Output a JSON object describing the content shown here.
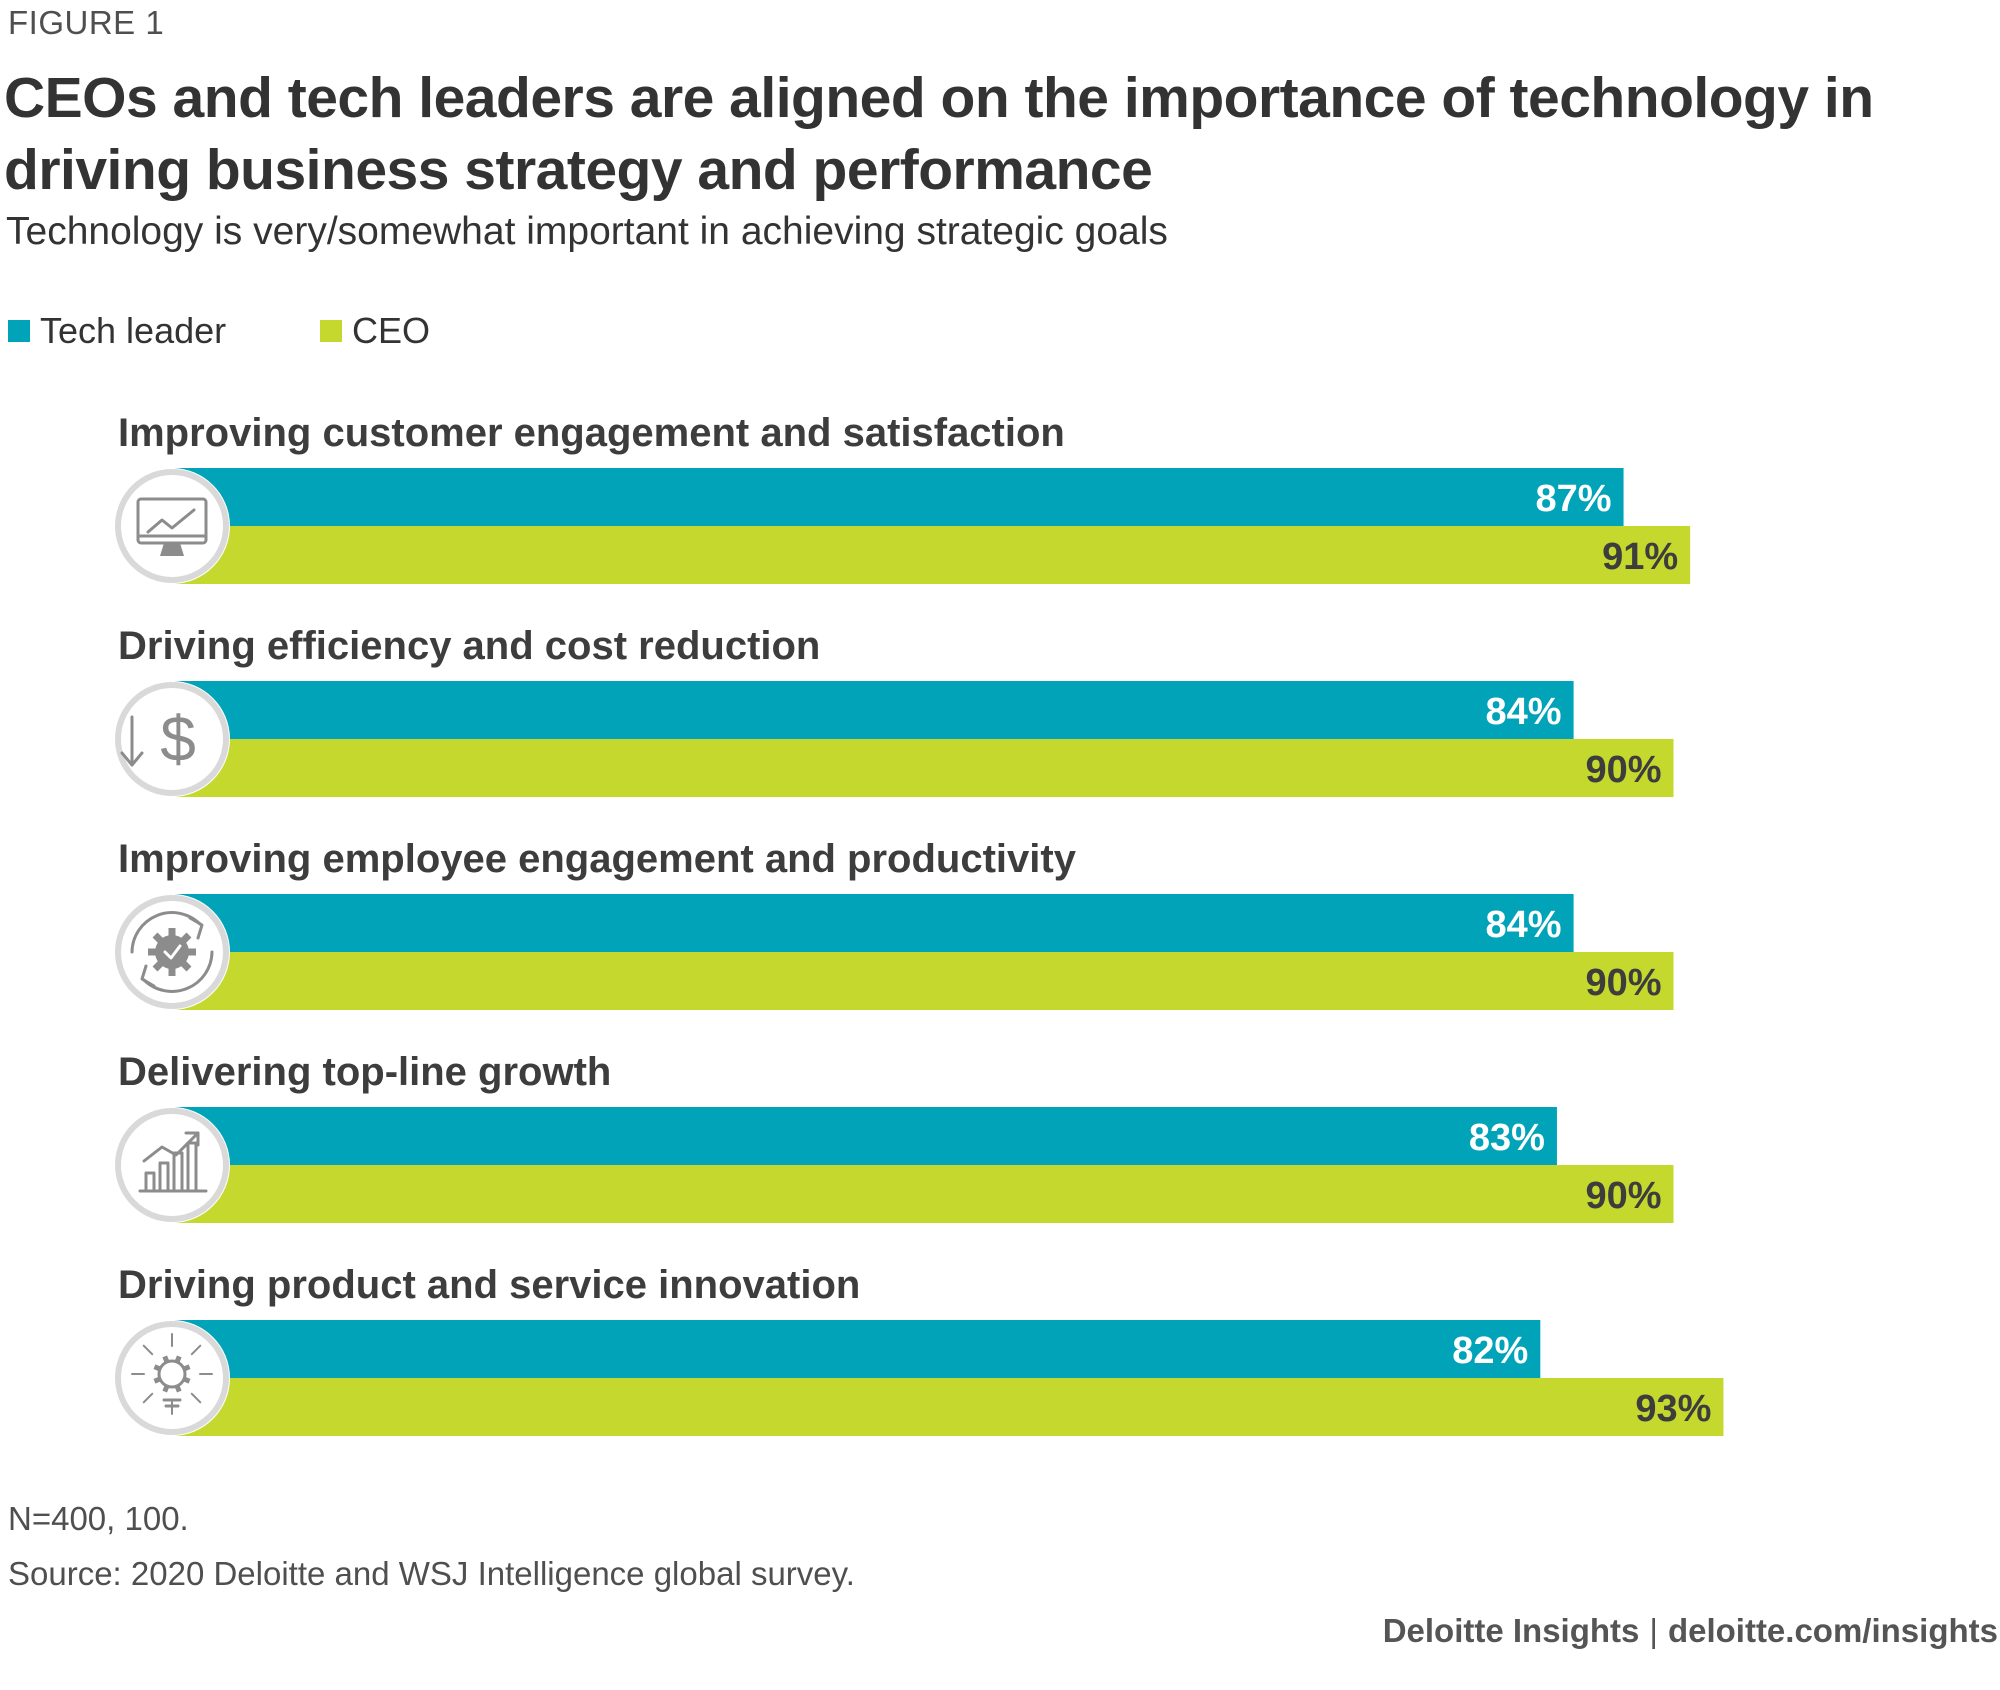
{
  "figure_label": "FIGURE 1",
  "footer": {
    "brand": "Deloitte Insights",
    "separator": "|",
    "url": "deloitte.com/insights"
  },
  "notes": {
    "n": "N=400, 100.",
    "source": "Source: 2020 Deloitte and WSJ Intelligence global survey."
  },
  "colors": {
    "tech_leader": "#00A3B8",
    "ceo": "#C4D82D",
    "icon_stroke": "#8c8c8c",
    "icon_ring": "#d9d9d9"
  },
  "chart_data": {
    "type": "bar",
    "orientation": "horizontal",
    "title": "CEOs and tech leaders are aligned on the importance of technology in driving business strategy and performance",
    "subtitle": "Technology is very/somewhat important in achieving strategic goals",
    "categories": [
      "Improving customer engagement and satisfaction",
      "Driving efficiency and cost reduction",
      "Improving employee engagement and productivity",
      "Delivering top-line growth",
      "Driving product and service innovation"
    ],
    "icons": [
      "monitor-chart-icon",
      "dollar-down-icon",
      "gear-cycle-icon",
      "growth-chart-icon",
      "lightbulb-gear-icon"
    ],
    "series": [
      {
        "name": "Tech leader",
        "values": [
          87,
          84,
          84,
          83,
          82
        ],
        "labels": [
          "87%",
          "84%",
          "84%",
          "83%",
          "82%"
        ]
      },
      {
        "name": "CEO",
        "values": [
          91,
          90,
          90,
          90,
          93
        ],
        "labels": [
          "91%",
          "90%",
          "90%",
          "90%",
          "93%"
        ]
      }
    ],
    "unit": "%",
    "xlim": [
      0,
      100
    ],
    "legend_position": "top-left",
    "grid": false
  }
}
